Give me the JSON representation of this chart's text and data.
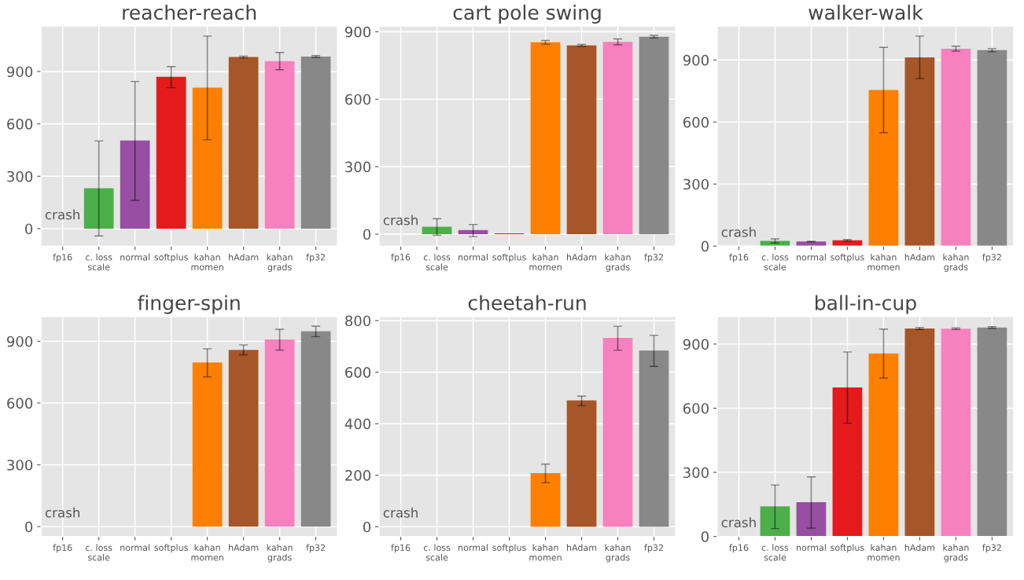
{
  "chart_data": [
    {
      "type": "bar",
      "title": "reacher-reach",
      "categories": [
        "fp16",
        "c. loss\nscale",
        "normal",
        "softplus",
        "kahan\nmomen",
        "hAdam",
        "kahan\ngrads",
        "fp32"
      ],
      "values": [
        0,
        231,
        505,
        870,
        808,
        983,
        960,
        985
      ],
      "errors": [
        null,
        [
          -42,
          502
        ],
        [
          162,
          843
        ],
        [
          807,
          928
        ],
        [
          509,
          1103
        ],
        [
          978,
          988
        ],
        [
          910,
          1009
        ],
        [
          980,
          991
        ]
      ],
      "colors": [
        "#6a9fd8",
        "#4daf4a",
        "#984ea3",
        "#e41a1c",
        "#ff7f00",
        "#a65628",
        "#f781bf",
        "#888888"
      ],
      "ylim": [
        -100,
        1160
      ],
      "yticks": [
        0,
        300,
        600,
        900
      ],
      "grid": true,
      "annotations": [
        {
          "text": "crash",
          "x": "fp16",
          "y": 0
        }
      ]
    },
    {
      "type": "bar",
      "title": "cart pole swing",
      "categories": [
        "fp16",
        "c. loss\nscale",
        "normal",
        "softplus",
        "kahan\nmomen",
        "hAdam",
        "kahan\ngrads",
        "fp32"
      ],
      "values": [
        0,
        33,
        18,
        3,
        853,
        839,
        855,
        878
      ],
      "errors": [
        null,
        [
          -5,
          69
        ],
        [
          -11,
          43
        ],
        null,
        [
          845,
          861
        ],
        [
          835,
          844
        ],
        [
          842,
          868
        ],
        [
          872,
          884
        ]
      ],
      "colors": [
        "#6a9fd8",
        "#4daf4a",
        "#984ea3",
        "#e41a1c",
        "#ff7f00",
        "#a65628",
        "#f781bf",
        "#888888"
      ],
      "ylim": [
        -53,
        925
      ],
      "yticks": [
        0,
        300,
        600,
        900
      ],
      "grid": true,
      "annotations": [
        {
          "text": "crash",
          "x": "fp16",
          "y": 0
        }
      ]
    },
    {
      "type": "bar",
      "title": "walker-walk",
      "categories": [
        "fp16",
        "c. loss\nscale",
        "normal",
        "softplus",
        "kahan\nmomen",
        "hAdam",
        "kahan\ngrads",
        "fp32"
      ],
      "values": [
        0,
        25,
        22,
        28,
        755,
        913,
        955,
        948
      ],
      "errors": [
        null,
        [
          15,
          35
        ],
        [
          20,
          24
        ],
        [
          24,
          32
        ],
        [
          549,
          961
        ],
        [
          810,
          1016
        ],
        [
          943,
          967
        ],
        [
          940,
          955
        ]
      ],
      "colors": [
        "#6a9fd8",
        "#4daf4a",
        "#984ea3",
        "#e41a1c",
        "#ff7f00",
        "#a65628",
        "#f781bf",
        "#888888"
      ],
      "ylim": [
        0,
        1064
      ],
      "yticks": [
        0,
        300,
        600,
        900
      ],
      "grid": true,
      "annotations": [
        {
          "text": "crash",
          "x": "fp16",
          "y": 0
        }
      ]
    },
    {
      "type": "bar",
      "title": "finger-spin",
      "categories": [
        "fp16",
        "c. loss\nscale",
        "normal",
        "softplus",
        "kahan\nmomen",
        "hAdam",
        "kahan\ngrads",
        "fp32"
      ],
      "values": [
        0,
        0,
        0,
        0,
        797,
        858,
        908,
        948
      ],
      "errors": [
        null,
        null,
        null,
        null,
        [
          727,
          863
        ],
        [
          834,
          882
        ],
        [
          857,
          958
        ],
        [
          922,
          973
        ]
      ],
      "colors": [
        "#6a9fd8",
        "#4daf4a",
        "#984ea3",
        "#e41a1c",
        "#ff7f00",
        "#a65628",
        "#f781bf",
        "#888888"
      ],
      "ylim": [
        -48,
        1020
      ],
      "yticks": [
        0,
        300,
        600,
        900
      ],
      "grid": true,
      "annotations": [
        {
          "text": "crash",
          "x": "fp16",
          "y": 0
        }
      ]
    },
    {
      "type": "bar",
      "title": "cheetah-run",
      "categories": [
        "fp16",
        "c. loss\nscale",
        "normal",
        "softplus",
        "kahan\nmomen",
        "hAdam",
        "kahan\ngrads",
        "fp32"
      ],
      "values": [
        0,
        0,
        0,
        0,
        208,
        490,
        733,
        684
      ],
      "errors": [
        null,
        null,
        null,
        null,
        [
          171,
          243
        ],
        [
          470,
          507
        ],
        [
          685,
          778
        ],
        [
          622,
          743
        ]
      ],
      "colors": [
        "#6a9fd8",
        "#4daf4a",
        "#984ea3",
        "#e41a1c",
        "#ff7f00",
        "#a65628",
        "#f781bf",
        "#888888"
      ],
      "ylim": [
        -38,
        816
      ],
      "yticks": [
        0,
        200,
        400,
        600,
        800
      ],
      "grid": true,
      "annotations": [
        {
          "text": "crash",
          "x": "fp16",
          "y": 0
        }
      ]
    },
    {
      "type": "bar",
      "title": "ball-in-cup",
      "categories": [
        "fp16",
        "c. loss\nscale",
        "normal",
        "softplus",
        "kahan\nmomen",
        "hAdam",
        "kahan\ngrads",
        "fp32"
      ],
      "values": [
        0,
        141,
        160,
        697,
        856,
        973,
        972,
        977
      ],
      "errors": [
        null,
        [
          37,
          241
        ],
        [
          39,
          279
        ],
        [
          530,
          863
        ],
        [
          741,
          970
        ],
        [
          968,
          978
        ],
        [
          968,
          976
        ],
        [
          973,
          981
        ]
      ],
      "colors": [
        "#6a9fd8",
        "#4daf4a",
        "#984ea3",
        "#e41a1c",
        "#ff7f00",
        "#a65628",
        "#f781bf",
        "#888888"
      ],
      "ylim": [
        0,
        1029
      ],
      "yticks": [
        0,
        300,
        600,
        900
      ],
      "grid": true,
      "annotations": [
        {
          "text": "crash",
          "x": "fp16",
          "y": 0
        }
      ]
    }
  ]
}
